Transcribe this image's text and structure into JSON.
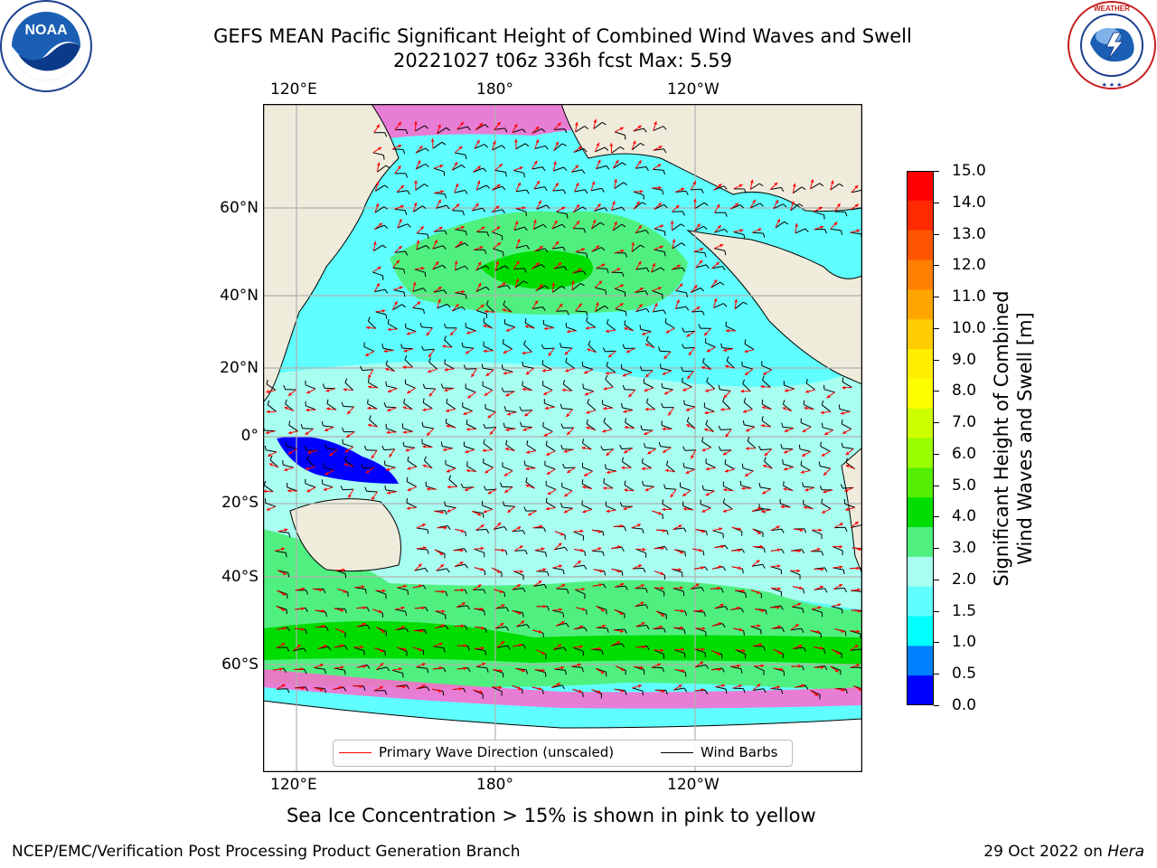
{
  "title": {
    "line1": "GEFS MEAN Pacific Significant Height of Combined Wind Waves and Swell",
    "line2": "20221027 t06z 336h fcst   Max: 5.59"
  },
  "axes": {
    "top_lon_ticks": [
      "120°E",
      "180°",
      "120°W"
    ],
    "bottom_lon_ticks": [
      "120°E",
      "180°",
      "120°W"
    ],
    "lat_ticks": [
      "60°N",
      "40°N",
      "20°N",
      "0°",
      "20°S",
      "40°S",
      "60°S"
    ]
  },
  "legend": {
    "primary": "Primary Wave Direction (unscaled)",
    "barbs": "Wind Barbs"
  },
  "colorbar": {
    "label_line1": "Significant Height of Combined",
    "label_line2": "Wind Waves and Swell [m]",
    "ticks": [
      "15.0",
      "14.0",
      "13.0",
      "12.0",
      "11.0",
      "10.0",
      "9.0",
      "8.0",
      "7.0",
      "6.0",
      "5.0",
      "4.0",
      "3.0",
      "2.0",
      "1.5",
      "1.0",
      "0.5",
      "0.0"
    ],
    "colors": [
      "#ff0000",
      "#ff2a00",
      "#ff5500",
      "#ff7f00",
      "#ffa500",
      "#ffcc00",
      "#ffee00",
      "#ffff00",
      "#ccff00",
      "#99ff00",
      "#55ee00",
      "#00dd00",
      "#50f080",
      "#a8fff0",
      "#60ffff",
      "#00ffff",
      "#0080ff",
      "#0000ff"
    ]
  },
  "subtitle": "Sea Ice Concentration > 15% is shown in pink to yellow",
  "footer": {
    "left": "NCEP/EMC/Verification Post Processing Product Generation Branch",
    "date": "29 Oct 2022 on ",
    "machine": "Hera"
  },
  "logos": {
    "noaa_text": "NOAA",
    "noaa_ring": "NATIONAL OCEANIC AND ATMOSPHERIC ADMINISTRATION",
    "nws_ring": "NATIONAL WEATHER SERVICE"
  },
  "map_colors": {
    "land": "#efecdc",
    "ocean_low": "#a8fff0",
    "ocean_mid": "#60ffff",
    "ocean_high": "#50f080",
    "ocean_max": "#00dd00",
    "ice": "#ff66cc",
    "arrows": "#ff0000",
    "barbs": "#000000"
  }
}
